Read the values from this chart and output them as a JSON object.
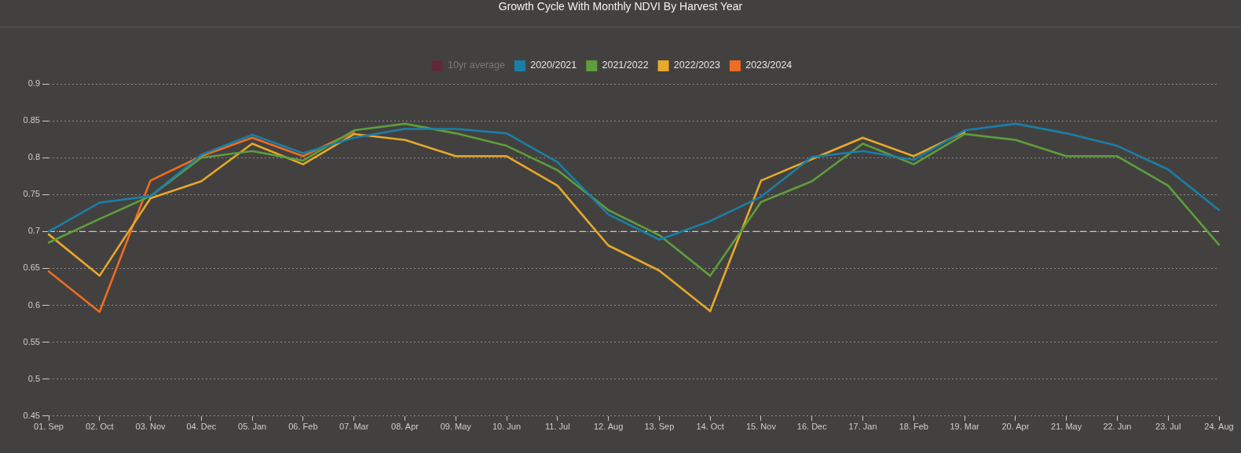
{
  "chart_data": {
    "type": "line",
    "title": "Growth Cycle With Monthly NDVI By Harvest Year",
    "categories": [
      "01. Sep",
      "02. Oct",
      "03. Nov",
      "04. Dec",
      "05. Jan",
      "06. Feb",
      "07. Mar",
      "08. Apr",
      "09. May",
      "10. Jun",
      "11. Jul",
      "12. Aug",
      "13. Sep",
      "14. Oct",
      "15. Nov",
      "16. Dec",
      "17. Jan",
      "18. Feb",
      "19. Mar",
      "20. Apr",
      "21. May",
      "22. Jun",
      "23. Jul",
      "24. Aug"
    ],
    "series": [
      {
        "name": "10yr average",
        "color": "#5c2a3a",
        "values": [
          null,
          null,
          null,
          null,
          null,
          null,
          null,
          null,
          null,
          null,
          null,
          null,
          null,
          null,
          null,
          null,
          null,
          null,
          null,
          null,
          null,
          null,
          null,
          null
        ]
      },
      {
        "name": "2020/2021",
        "color": "#1a7fa6",
        "values": [
          0.7,
          0.739,
          0.748,
          0.804,
          0.831,
          0.806,
          0.827,
          0.839,
          0.839,
          0.833,
          0.794,
          0.723,
          0.689,
          0.714,
          0.747,
          0.801,
          0.809,
          0.797,
          0.837,
          0.846,
          0.833,
          0.816,
          0.784,
          0.729
        ]
      },
      {
        "name": "2021/2022",
        "color": "#5e9e3c",
        "values": [
          0.685,
          0.717,
          0.748,
          0.8,
          0.809,
          0.796,
          0.837,
          0.846,
          0.833,
          0.816,
          0.783,
          0.729,
          0.695,
          0.64,
          0.74,
          0.768,
          0.819,
          0.791,
          0.832,
          0.824,
          0.802,
          0.802,
          0.762,
          0.682
        ]
      },
      {
        "name": "2022/2023",
        "color": "#e8a829",
        "values": [
          0.696,
          0.64,
          0.745,
          0.768,
          0.819,
          0.791,
          0.832,
          0.824,
          0.802,
          0.802,
          0.762,
          0.681,
          0.647,
          0.592,
          0.769,
          0.798,
          0.827,
          0.802,
          0.835,
          null,
          null,
          null,
          null,
          null
        ]
      },
      {
        "name": "2023/2024",
        "color": "#ef6c22",
        "values": [
          0.646,
          0.591,
          0.769,
          0.802,
          0.827,
          0.802,
          0.835,
          null,
          null,
          null,
          null,
          null,
          null,
          null,
          null,
          null,
          null,
          null,
          null,
          null,
          null,
          null,
          null,
          null
        ]
      }
    ],
    "ylim": [
      0.45,
      0.9
    ],
    "yticks": [
      0.45,
      0.5,
      0.55,
      0.6,
      0.65,
      0.7,
      0.75,
      0.8,
      0.85,
      0.9
    ],
    "ref_lines": [
      {
        "axis": "y",
        "value": 0.7,
        "color": "#c8c6c4",
        "line_style": "dashed"
      }
    ],
    "grid": "y",
    "legend": "top",
    "marker": "none",
    "line_style": "solid"
  }
}
